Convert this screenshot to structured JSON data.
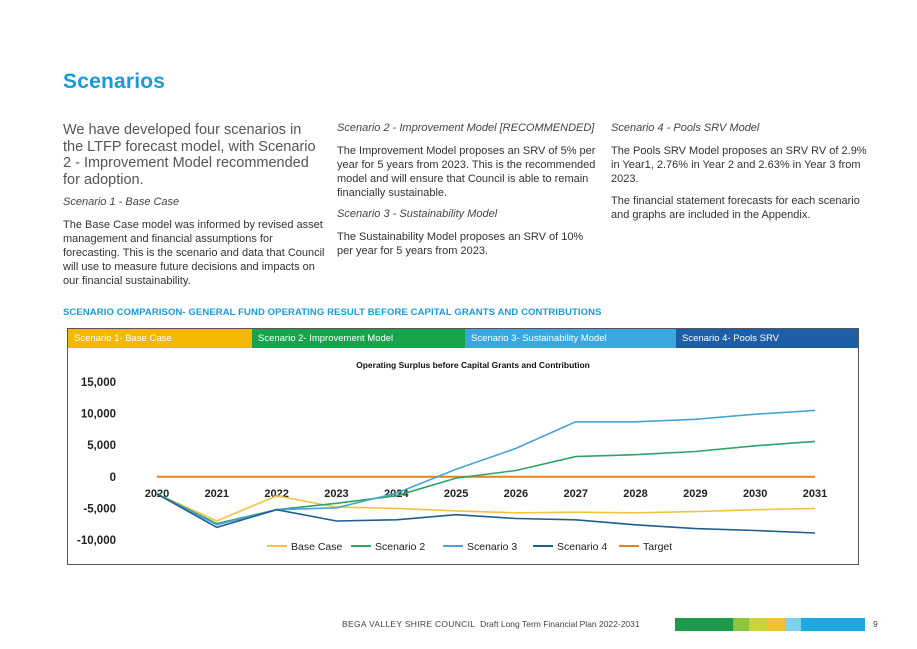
{
  "page": {
    "title": "Scenarios",
    "intro": "We have developed four scenarios in the LTFP forecast model, with Scenario 2 - Improvement Model recommended for adoption."
  },
  "scenarios": {
    "s1_heading": "Scenario 1 - Base Case",
    "s1_text": "The Base Case model was informed by revised asset management and financial assumptions for forecasting. This is the scenario and data that Council will use to measure future decisions and impacts on our financial sustainability.",
    "s2_heading": "Scenario 2 - Improvement Model [RECOMMENDED]",
    "s2_text": "The Improvement Model proposes an SRV of 5% per year for 5 years from 2023. This is the recommended model and will ensure that Council is able to remain financially sustainable.",
    "s3_heading": "Scenario 3 - Sustainability Model",
    "s3_text": "The Sustainability Model proposes an SRV of 10% per year for 5 years from 2023.",
    "s4_heading": "Scenario 4 - Pools SRV Model",
    "s4_text": "The Pools SRV Model proposes an SRV RV of 2.9% in Year1, 2.76% in Year 2 and 2.63% in Year 3 from 2023.",
    "appendix_text": "The financial statement forecasts for each scenario and graphs are included in the Appendix."
  },
  "comparison": {
    "section_title": "SCENARIO COMPARISON- GENERAL FUND OPERATING RESULT BEFORE CAPITAL GRANTS AND CONTRIBUTIONS",
    "legend_bar": [
      {
        "label": "Scenario 1- Base Case",
        "color": "#f5b800"
      },
      {
        "label": "Scenario 2- Improvement Model",
        "color": "#19a34a"
      },
      {
        "label": "Scenario 3- Sustainability Model",
        "color": "#3aa7de"
      },
      {
        "label": "Scenario 4- Pools SRV",
        "color": "#1d5fa6"
      }
    ]
  },
  "chart_data": {
    "type": "line",
    "title": "Operating Surplus before Capital Grants and Contribution",
    "x": [
      "2020",
      "2021",
      "2022",
      "2023",
      "2024",
      "2025",
      "2026",
      "2027",
      "2028",
      "2029",
      "2030",
      "2031"
    ],
    "ylim": [
      -10000,
      15000
    ],
    "yticks": [
      15000,
      10000,
      5000,
      0,
      -5000,
      -10000
    ],
    "ytick_labels": [
      "15,000",
      "10,000",
      "5,000",
      "0",
      "-5,000",
      "-10,000"
    ],
    "legend_position": "bottom",
    "grid": false,
    "series": [
      {
        "name": "Base Case",
        "color": "#f5c342",
        "values": [
          -2700,
          -7000,
          -3000,
          -4800,
          -5000,
          -5400,
          -5700,
          -5600,
          -5700,
          -5500,
          -5200,
          -5000
        ]
      },
      {
        "name": "Scenario 2",
        "color": "#2aa567",
        "values": [
          -2700,
          -7400,
          -5200,
          -4200,
          -3000,
          -200,
          1000,
          3200,
          3500,
          4000,
          4900,
          5600
        ]
      },
      {
        "name": "Scenario 3",
        "color": "#4aa3d4",
        "values": [
          -2700,
          -7600,
          -5200,
          -4900,
          -2600,
          1200,
          4500,
          8700,
          8700,
          9100,
          9900,
          10500
        ]
      },
      {
        "name": "Scenario 4",
        "color": "#1f5f8f",
        "values": [
          -2700,
          -8000,
          -5200,
          -7000,
          -6800,
          -6000,
          -6600,
          -6800,
          -7600,
          -8200,
          -8500,
          -8900
        ]
      },
      {
        "name": "Target",
        "color": "#e8821a",
        "values": [
          0,
          0,
          0,
          0,
          0,
          0,
          0,
          0,
          0,
          0,
          0,
          0
        ]
      }
    ]
  },
  "footer": {
    "org": "BEGA VALLEY SHIRE COUNCIL",
    "doc": "Draft Long Term Financial Plan 2022-2031",
    "page_number": "9",
    "bar_colors": [
      "#1a9a4a",
      "#8cc63f",
      "#c8d43a",
      "#f2c12e",
      "#7fd0ef",
      "#20a9e1"
    ]
  }
}
